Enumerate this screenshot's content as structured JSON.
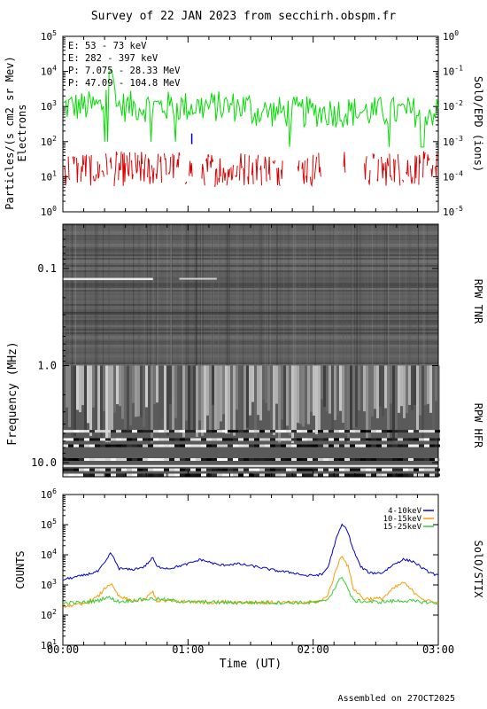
{
  "title": "Survey of 22 JAN 2023 from secchirh.obspm.fr",
  "footer": "Assembled on 27OCT2025",
  "chart_data": [
    {
      "type": "line",
      "panel": "epd",
      "ylabel": "Particles/(s cm2 sr Mev)",
      "ylabel2": "Electrons",
      "right_label": "SolO/EPD (ions)",
      "yscale": "log",
      "ylim": [
        1,
        100000
      ],
      "y_ticks": [
        "10",
        "10",
        "10",
        "10",
        "10",
        "10"
      ],
      "y_tick_exponents": [
        "0",
        "1",
        "2",
        "3",
        "4",
        "5"
      ],
      "y2lim": [
        1e-05,
        1
      ],
      "y2_ticks": [
        "10",
        "10",
        "10",
        "10",
        "10",
        "10"
      ],
      "y2_tick_exponents": [
        "-5",
        "-4",
        "-3",
        "-2",
        "-1",
        "0"
      ],
      "legend_placement": "top-left",
      "series": [
        {
          "name": "E: 53 - 73 keV",
          "color": "#00dd00",
          "typical": 1000,
          "peak_time": 0.38,
          "peak_value": 10000
        },
        {
          "name": "E: 282 - 397 keV",
          "color": "#dd0000",
          "typical": 15
        },
        {
          "name": "P: 7.075 - 28.33 MeV",
          "color": "#000000"
        },
        {
          "name": "P: 47.09 - 104.8 MeV",
          "color": "#0000cc",
          "points": [
            [
              1.03,
              0.0012
            ]
          ]
        }
      ]
    },
    {
      "type": "heatmap",
      "panel": "rpw",
      "ylabel": "Frequency (MHz)",
      "yscale": "log",
      "y_reversed": true,
      "ylim": [
        0.035,
        14
      ],
      "y_ticks": [
        "0.1",
        "1.0",
        "10.0"
      ],
      "y_tick_values": [
        0.1,
        1.0,
        10.0
      ],
      "right_labels": [
        "RPW TNR",
        "RPW HFR"
      ],
      "colormap": "grayscale"
    },
    {
      "type": "line",
      "panel": "stix",
      "ylabel": "COUNTS",
      "right_label": "SolO/STIX",
      "yscale": "log",
      "ylim": [
        10,
        1000000
      ],
      "y_ticks": [
        "10",
        "10",
        "10",
        "10",
        "10",
        "10"
      ],
      "y_tick_exponents": [
        "1",
        "2",
        "3",
        "4",
        "5",
        "6"
      ],
      "xlabel": "Time (UT)",
      "xlim": [
        "00:00",
        "03:00"
      ],
      "x_ticks": [
        "00:00",
        "01:00",
        "02:00",
        "03:00"
      ],
      "legend_placement": "top-right",
      "series": [
        {
          "name": "4-10keV",
          "color": "#0000cc",
          "points": [
            [
              0.0,
              1500
            ],
            [
              0.15,
              2000
            ],
            [
              0.28,
              2800
            ],
            [
              0.35,
              6500
            ],
            [
              0.38,
              12000
            ],
            [
              0.45,
              3500
            ],
            [
              0.55,
              3200
            ],
            [
              0.65,
              4000
            ],
            [
              0.72,
              8000
            ],
            [
              0.75,
              4000
            ],
            [
              0.85,
              3500
            ],
            [
              1.0,
              5000
            ],
            [
              1.1,
              7000
            ],
            [
              1.25,
              4500
            ],
            [
              1.4,
              5000
            ],
            [
              1.55,
              4000
            ],
            [
              1.7,
              3000
            ],
            [
              1.85,
              2500
            ],
            [
              1.95,
              2000
            ],
            [
              2.07,
              2200
            ],
            [
              2.12,
              4000
            ],
            [
              2.18,
              30000
            ],
            [
              2.23,
              100000
            ],
            [
              2.27,
              70000
            ],
            [
              2.32,
              15000
            ],
            [
              2.38,
              4000
            ],
            [
              2.45,
              2500
            ],
            [
              2.55,
              2500
            ],
            [
              2.65,
              5000
            ],
            [
              2.72,
              7000
            ],
            [
              2.8,
              6000
            ],
            [
              2.9,
              3000
            ],
            [
              3.0,
              2000
            ]
          ]
        },
        {
          "name": "10-15keV",
          "color": "#ff9900",
          "points": [
            [
              0.0,
              200
            ],
            [
              0.15,
              220
            ],
            [
              0.28,
              400
            ],
            [
              0.35,
              900
            ],
            [
              0.38,
              1100
            ],
            [
              0.45,
              400
            ],
            [
              0.55,
              300
            ],
            [
              0.65,
              320
            ],
            [
              0.72,
              600
            ],
            [
              0.75,
              300
            ],
            [
              1.0,
              280
            ],
            [
              1.2,
              270
            ],
            [
              1.4,
              270
            ],
            [
              1.7,
              260
            ],
            [
              1.95,
              250
            ],
            [
              2.07,
              300
            ],
            [
              2.12,
              500
            ],
            [
              2.2,
              5000
            ],
            [
              2.23,
              10000
            ],
            [
              2.28,
              4000
            ],
            [
              2.32,
              800
            ],
            [
              2.4,
              350
            ],
            [
              2.55,
              350
            ],
            [
              2.65,
              800
            ],
            [
              2.72,
              1200
            ],
            [
              2.8,
              600
            ],
            [
              2.9,
              300
            ],
            [
              3.0,
              250
            ]
          ]
        },
        {
          "name": "15-25keV",
          "color": "#33cc33",
          "points": [
            [
              0.0,
              250
            ],
            [
              0.15,
              260
            ],
            [
              0.28,
              300
            ],
            [
              0.35,
              400
            ],
            [
              0.45,
              280
            ],
            [
              0.72,
              350
            ],
            [
              1.0,
              270
            ],
            [
              1.4,
              260
            ],
            [
              1.95,
              260
            ],
            [
              2.07,
              270
            ],
            [
              2.12,
              350
            ],
            [
              2.2,
              1200
            ],
            [
              2.23,
              2000
            ],
            [
              2.28,
              700
            ],
            [
              2.32,
              300
            ],
            [
              2.5,
              270
            ],
            [
              2.72,
              300
            ],
            [
              3.0,
              250
            ]
          ]
        }
      ]
    }
  ]
}
